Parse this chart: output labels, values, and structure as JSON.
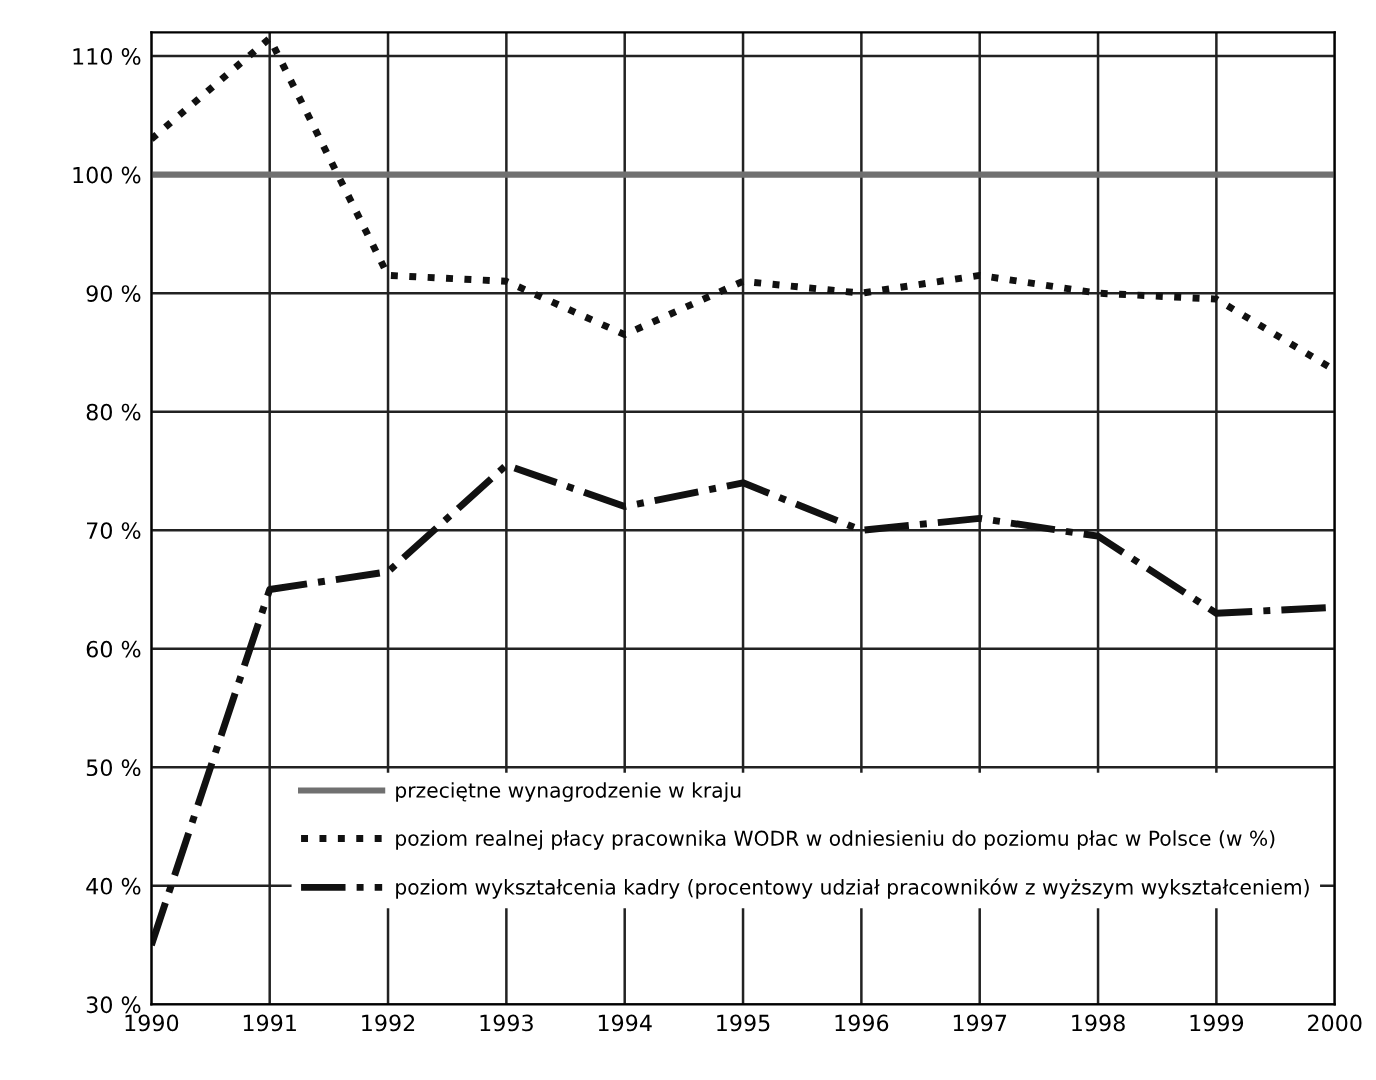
{
  "chart_data": {
    "type": "line",
    "x": [
      1990,
      1991,
      1992,
      1993,
      1994,
      1995,
      1996,
      1997,
      1998,
      1999,
      2000
    ],
    "series": [
      {
        "name": "przeciętne wynagrodzenie w kraju",
        "color": "#707070",
        "line_style": "solid",
        "values": [
          100,
          100,
          100,
          100,
          100,
          100,
          100,
          100,
          100,
          100,
          100
        ]
      },
      {
        "name": "poziom realnej płacy pracownika WODR w odniesieniu do poziomu płac w Polsce (w %)",
        "color": "#111111",
        "line_style": "dotted",
        "values": [
          103,
          111.5,
          91.5,
          91,
          86.5,
          91,
          90,
          91.5,
          90,
          89.5,
          83.5
        ]
      },
      {
        "name": "poziom wykształcenia kadry (procentowy udział pracowników z wyższym wykształceniem)",
        "color": "#111111",
        "line_style": "dashdot",
        "values": [
          35,
          65,
          66.5,
          75.5,
          72,
          74,
          70,
          71,
          69.5,
          63,
          63.5
        ]
      }
    ],
    "xlim": [
      1990,
      2000
    ],
    "xticks": [
      1990,
      1991,
      1992,
      1993,
      1994,
      1995,
      1996,
      1997,
      1998,
      1999,
      2000
    ],
    "ylim": [
      30,
      112
    ],
    "yticks": [
      {
        "value": 30,
        "label": "30 %"
      },
      {
        "value": 40,
        "label": "40 %"
      },
      {
        "value": 50,
        "label": "50 %"
      },
      {
        "value": 60,
        "label": "60 %"
      },
      {
        "value": 70,
        "label": "70 %"
      },
      {
        "value": 80,
        "label": "80 %"
      },
      {
        "value": 90,
        "label": "90 %"
      },
      {
        "value": 100,
        "label": "100 %"
      },
      {
        "value": 110,
        "label": "110 %"
      }
    ],
    "grid": true,
    "legend": "bottom right",
    "marker": "none"
  }
}
